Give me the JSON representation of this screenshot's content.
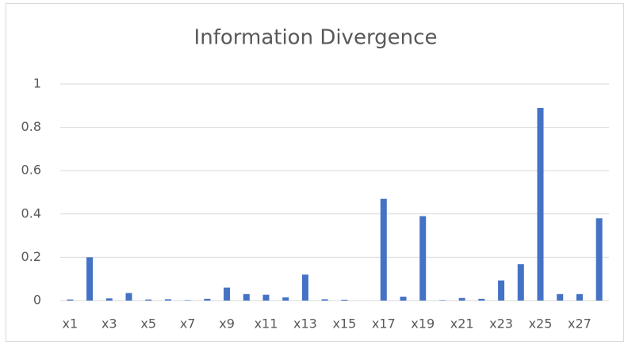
{
  "chart_data": {
    "type": "bar",
    "title": "Information Divergence",
    "categories": [
      "x1",
      null,
      "x3",
      null,
      "x5",
      null,
      "x7",
      null,
      "x9",
      null,
      "x11",
      null,
      "x13",
      null,
      "x15",
      null,
      "x17",
      null,
      "x19",
      null,
      "x21",
      null,
      "x23",
      null,
      "x25",
      null,
      "x27",
      null
    ],
    "values": [
      0.005,
      0.2,
      0.01,
      0.035,
      0.005,
      0.006,
      0.002,
      0.008,
      0.06,
      0.03,
      0.027,
      0.015,
      0.12,
      0.006,
      0.004,
      0.0,
      0.47,
      0.018,
      0.39,
      0.002,
      0.012,
      0.008,
      0.093,
      0.168,
      0.89,
      0.03,
      0.03,
      0.38
    ],
    "color": "#4472c4",
    "ylim": [
      0,
      1
    ],
    "yticks": [
      0,
      0.2,
      0.4,
      0.6,
      0.8,
      1
    ],
    "grid": true
  }
}
